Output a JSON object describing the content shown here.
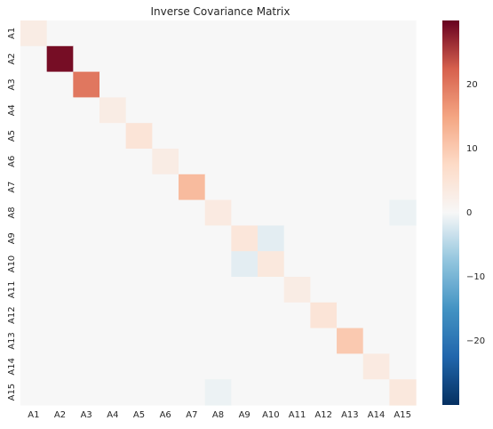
{
  "chart_data": {
    "type": "heatmap",
    "title": "Inverse Covariance Matrix",
    "labels": [
      "A1",
      "A2",
      "A3",
      "A4",
      "A5",
      "A6",
      "A7",
      "A8",
      "A9",
      "A10",
      "A11",
      "A12",
      "A13",
      "A14",
      "A15"
    ],
    "values": [
      [
        3,
        0,
        0,
        0,
        0,
        0,
        0,
        0,
        0,
        0,
        0,
        0,
        0,
        0,
        0
      ],
      [
        0,
        29,
        0,
        0,
        0,
        0,
        0,
        0,
        0,
        0,
        0,
        0,
        0,
        0,
        0
      ],
      [
        0,
        0,
        20,
        0,
        0,
        0,
        0,
        0,
        0,
        0,
        0,
        0,
        0,
        0,
        0
      ],
      [
        0,
        0,
        0,
        3,
        0,
        0,
        0,
        0,
        0,
        0,
        0,
        0,
        0,
        0,
        0
      ],
      [
        0,
        0,
        0,
        0,
        5,
        0,
        0,
        0,
        0,
        0,
        0,
        0,
        0,
        0,
        0
      ],
      [
        0,
        0,
        0,
        0,
        0,
        3,
        0,
        0,
        0,
        0,
        0,
        0,
        0,
        0,
        0
      ],
      [
        0,
        0,
        0,
        0,
        0,
        0,
        12,
        0,
        0,
        0,
        0,
        0,
        0,
        0,
        0
      ],
      [
        0,
        0,
        0,
        0,
        0,
        0,
        0,
        3.5,
        0,
        0,
        0,
        0,
        0,
        0,
        -0.8
      ],
      [
        0,
        0,
        0,
        0,
        0,
        0,
        0,
        0,
        4.5,
        -1.5,
        0,
        0,
        0,
        0,
        0
      ],
      [
        0,
        0,
        0,
        0,
        0,
        0,
        0,
        0,
        -1.5,
        4,
        0,
        0,
        0,
        0,
        0
      ],
      [
        0,
        0,
        0,
        0,
        0,
        0,
        0,
        0,
        0,
        0,
        3,
        0,
        0,
        0,
        0
      ],
      [
        0,
        0,
        0,
        0,
        0,
        0,
        0,
        0,
        0,
        0,
        0,
        5,
        0,
        0,
        0
      ],
      [
        0,
        0,
        0,
        0,
        0,
        0,
        0,
        0,
        0,
        0,
        0,
        0,
        10,
        0,
        0
      ],
      [
        0,
        0,
        0,
        0,
        0,
        0,
        0,
        0,
        0,
        0,
        0,
        0,
        0,
        3.5,
        0
      ],
      [
        0,
        0,
        0,
        0,
        0,
        0,
        0,
        -0.8,
        0,
        0,
        0,
        0,
        0,
        0,
        4
      ]
    ],
    "vmin": -30,
    "vmax": 30,
    "colormap": "RdBu_r",
    "colorbar_ticks": [
      20,
      10,
      0,
      -10,
      -20
    ],
    "colorbar_tick_labels": [
      "20",
      "10",
      "0",
      "−10",
      "−20"
    ]
  },
  "colors": {
    "background": "#ffffff",
    "text": "#262626"
  }
}
